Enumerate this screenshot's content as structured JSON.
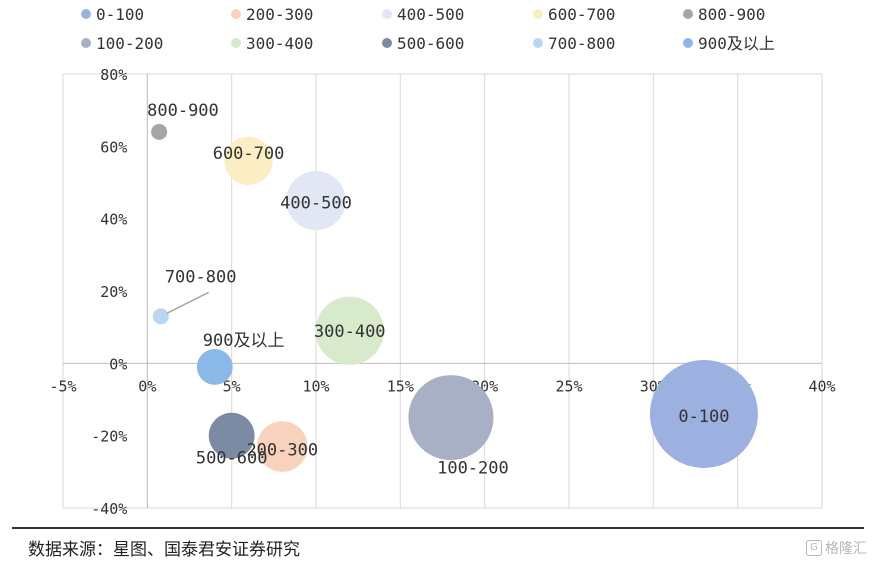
{
  "chart_data": {
    "type": "bubble",
    "title": "",
    "xlabel": "",
    "ylabel": "",
    "xlim": [
      -5,
      40
    ],
    "ylim": [
      -40,
      80
    ],
    "x_ticks": [
      "-5%",
      "0%",
      "5%",
      "10%",
      "15%",
      "20%",
      "25%",
      "30%",
      "35%",
      "40%"
    ],
    "y_ticks": [
      "80%",
      "60%",
      "40%",
      "20%",
      "0%",
      "-20%",
      "-40%"
    ],
    "grid": "vertical",
    "legend_position": "top",
    "series": [
      {
        "name": "0-100",
        "x": 33,
        "y": -14,
        "size": 1.0,
        "color": "#9db1e0"
      },
      {
        "name": "100-200",
        "x": 18,
        "y": -15,
        "size": 0.62,
        "color": "#a7b0c4"
      },
      {
        "name": "200-300",
        "x": 8,
        "y": -23,
        "size": 0.22,
        "color": "#f8d2bd"
      },
      {
        "name": "300-400",
        "x": 12,
        "y": 9,
        "size": 0.4,
        "color": "#d8eacc"
      },
      {
        "name": "400-500",
        "x": 10,
        "y": 45,
        "size": 0.3,
        "color": "#e2e7f5"
      },
      {
        "name": "500-600",
        "x": 5,
        "y": -20,
        "size": 0.18,
        "color": "#7d8aa3"
      },
      {
        "name": "600-700",
        "x": 6,
        "y": 56,
        "size": 0.2,
        "color": "#fbedc4"
      },
      {
        "name": "700-800",
        "x": 0.8,
        "y": 13,
        "size": 0.02,
        "color": "#bad6f1"
      },
      {
        "name": "800-900",
        "x": 0.7,
        "y": 64,
        "size": 0.02,
        "color": "#a6a6a6"
      },
      {
        "name": "900及以上",
        "x": 4,
        "y": -1,
        "size": 0.11,
        "color": "#8ab9e8"
      }
    ]
  },
  "source_text": "数据来源：星图、国泰君安证券研究",
  "watermark_text": "格隆汇",
  "watermark_icon": "G"
}
